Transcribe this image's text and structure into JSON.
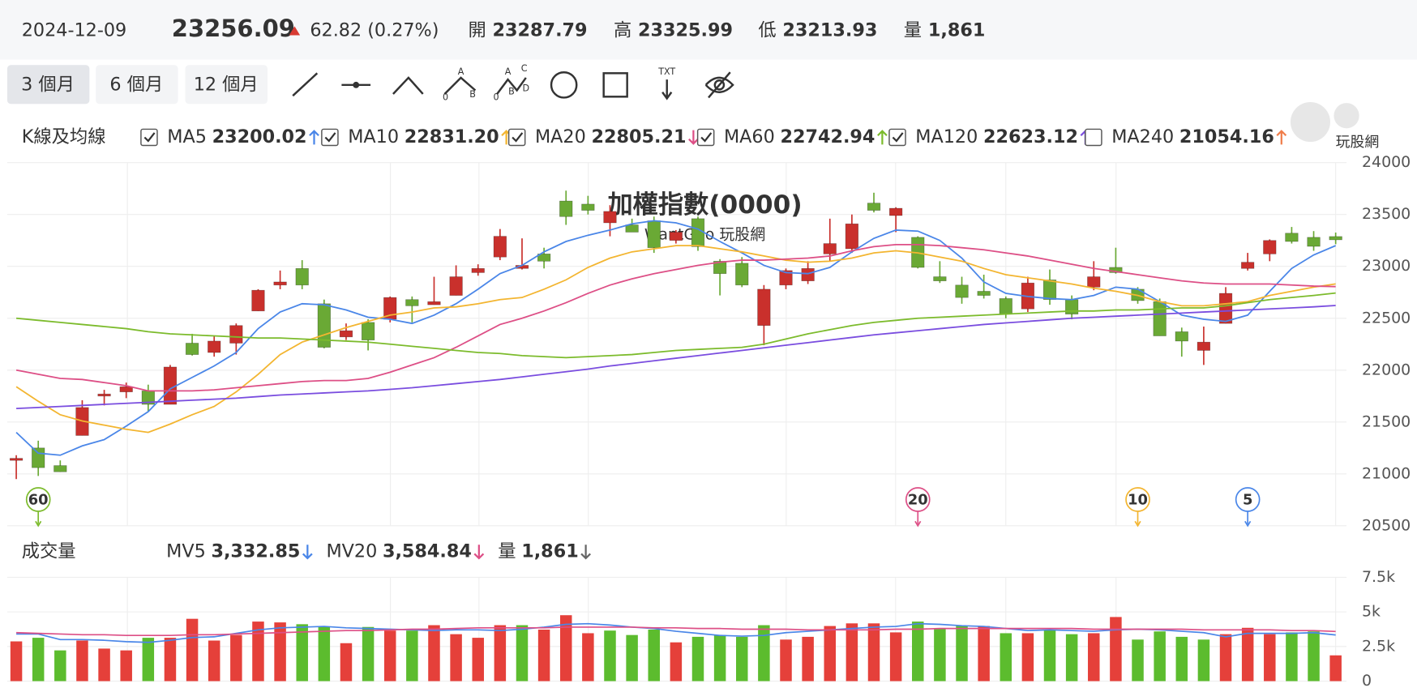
{
  "header": {
    "date": "2024-12-09",
    "price": "23256.09",
    "change": "62.82 (0.27%)",
    "trend": "up",
    "fields": [
      {
        "label": "開",
        "value": "23287.79"
      },
      {
        "label": "高",
        "value": "23325.99"
      },
      {
        "label": "低",
        "value": "23213.93"
      },
      {
        "label": "量",
        "value": "1,861"
      }
    ]
  },
  "toolbar": {
    "ranges": [
      "3 個月",
      "6 個月",
      "12 個月"
    ],
    "selected": 0,
    "glyphs": {
      "abc": [
        "A",
        "0",
        "B"
      ],
      "abcd": [
        "A",
        "C",
        "0",
        "B",
        "D"
      ],
      "txt": "TXT"
    }
  },
  "watermark": "玩股網",
  "chart_data": [
    {
      "type": "candlestick",
      "legend_title": "K線及均線",
      "title": "加權指數(0000)",
      "subtitle": "WantGoo 玩股網",
      "up_color": "#c9302c",
      "down_color": "#6aa935",
      "open": [
        21130,
        21250,
        21080,
        21370,
        21750,
        21790,
        21800,
        21670,
        22260,
        22170,
        22260,
        22570,
        22820,
        22980,
        22640,
        22320,
        22460,
        22490,
        22680,
        22630,
        22720,
        22940,
        23090,
        22980,
        23120,
        23630,
        23600,
        23420,
        23400,
        23440,
        23250,
        23460,
        23050,
        23030,
        22430,
        22820,
        22860,
        23120,
        23170,
        23610,
        23490,
        23280,
        22900,
        22820,
        22760,
        22690,
        22590,
        22870,
        22680,
        22800,
        22990,
        22780,
        22660,
        22370,
        22190,
        22450,
        22980,
        23120,
        23320,
        23280,
        23287.79
      ],
      "high": [
        21180,
        21320,
        21130,
        21710,
        21810,
        21880,
        21860,
        22050,
        22350,
        22330,
        22450,
        22780,
        22960,
        23060,
        22680,
        22450,
        22490,
        22710,
        22710,
        22900,
        23010,
        23020,
        23360,
        23270,
        23180,
        23730,
        23680,
        23590,
        23460,
        23480,
        23350,
        23480,
        23070,
        23090,
        22820,
        22980,
        23050,
        23460,
        23500,
        23710,
        23570,
        23290,
        23050,
        22900,
        22920,
        22710,
        22900,
        22970,
        22720,
        23050,
        23180,
        22800,
        22690,
        22410,
        22420,
        22800,
        23130,
        23260,
        23380,
        23340,
        23325.99
      ],
      "low": [
        20950,
        20980,
        21020,
        21370,
        21660,
        21730,
        21600,
        21670,
        22140,
        22130,
        22150,
        22570,
        22780,
        22780,
        22210,
        22290,
        22190,
        22460,
        22460,
        22630,
        22720,
        22910,
        23060,
        22970,
        22980,
        23400,
        23500,
        23290,
        23330,
        23130,
        23220,
        23150,
        22720,
        22800,
        22240,
        22780,
        22830,
        23050,
        23130,
        23520,
        23330,
        22980,
        22840,
        22640,
        22690,
        22500,
        22560,
        22630,
        22490,
        22770,
        22930,
        22640,
        22330,
        22130,
        22050,
        22450,
        22960,
        23050,
        23220,
        23150,
        23213.93
      ],
      "close": [
        21150,
        21060,
        21020,
        21640,
        21770,
        21840,
        21670,
        22030,
        22150,
        22280,
        22430,
        22770,
        22850,
        22820,
        22220,
        22380,
        22290,
        22700,
        22620,
        22660,
        22900,
        22980,
        23290,
        23010,
        23050,
        23480,
        23540,
        23530,
        23330,
        23180,
        23330,
        23190,
        22930,
        22820,
        22780,
        22960,
        22980,
        23220,
        23410,
        23540,
        23560,
        22990,
        22860,
        22700,
        22720,
        22540,
        22840,
        22680,
        22540,
        22900,
        22940,
        22670,
        22330,
        22280,
        22270,
        22740,
        23040,
        23250,
        23240,
        23193,
        23256.09
      ],
      "ylim": [
        20500,
        24000
      ],
      "yticks": [
        20500,
        21000,
        21500,
        22000,
        22500,
        23000,
        23500,
        24000
      ],
      "grid": true,
      "series": [
        {
          "name": "MA5",
          "color": "#4a86e8",
          "legend_value": "23200.02",
          "trend": "up",
          "checked": true,
          "values": [
            21400,
            21200,
            21180,
            21270,
            21330,
            21460,
            21600,
            21820,
            21930,
            22040,
            22170,
            22400,
            22560,
            22640,
            22630,
            22580,
            22510,
            22490,
            22450,
            22530,
            22640,
            22780,
            22930,
            23010,
            23140,
            23240,
            23300,
            23350,
            23410,
            23440,
            23420,
            23360,
            23240,
            23130,
            23010,
            22940,
            22930,
            22990,
            23140,
            23270,
            23350,
            23340,
            23250,
            23080,
            22850,
            22740,
            22710,
            22690,
            22680,
            22720,
            22800,
            22780,
            22660,
            22530,
            22490,
            22470,
            22530,
            22760,
            22980,
            23110,
            23200.02
          ]
        },
        {
          "name": "MA10",
          "color": "#f3b530",
          "legend_value": "22831.20",
          "trend": "up",
          "checked": true,
          "values": [
            21840,
            21700,
            21570,
            21510,
            21470,
            21430,
            21400,
            21480,
            21570,
            21650,
            21790,
            21960,
            22150,
            22270,
            22340,
            22410,
            22470,
            22530,
            22560,
            22600,
            22610,
            22640,
            22680,
            22700,
            22780,
            22870,
            22990,
            23080,
            23140,
            23170,
            23200,
            23200,
            23170,
            23140,
            23100,
            23060,
            23040,
            23050,
            23080,
            23130,
            23150,
            23130,
            23090,
            23050,
            22980,
            22920,
            22890,
            22860,
            22830,
            22790,
            22760,
            22720,
            22660,
            22620,
            22620,
            22640,
            22660,
            22720,
            22760,
            22800,
            22831.2
          ]
        },
        {
          "name": "MA20",
          "color": "#dd4f86",
          "legend_value": "22805.21",
          "trend": "down",
          "checked": true,
          "values": [
            22000,
            21960,
            21920,
            21910,
            21880,
            21850,
            21800,
            21800,
            21800,
            21810,
            21830,
            21850,
            21870,
            21890,
            21900,
            21900,
            21920,
            21980,
            22050,
            22120,
            22220,
            22330,
            22440,
            22500,
            22570,
            22650,
            22740,
            22820,
            22880,
            22930,
            22970,
            23010,
            23040,
            23060,
            23060,
            23070,
            23080,
            23100,
            23150,
            23190,
            23210,
            23210,
            23200,
            23180,
            23160,
            23130,
            23100,
            23060,
            23020,
            22980,
            22950,
            22920,
            22890,
            22860,
            22840,
            22830,
            22830,
            22830,
            22820,
            22810,
            22805.21
          ]
        },
        {
          "name": "MA60",
          "color": "#7cbb2c",
          "legend_value": "22742.94",
          "trend": "up",
          "checked": true,
          "values": [
            22500,
            22480,
            22460,
            22440,
            22420,
            22400,
            22370,
            22350,
            22340,
            22330,
            22320,
            22310,
            22310,
            22300,
            22290,
            22280,
            22270,
            22250,
            22230,
            22210,
            22190,
            22170,
            22160,
            22140,
            22130,
            22120,
            22130,
            22140,
            22150,
            22170,
            22190,
            22200,
            22210,
            22220,
            22250,
            22300,
            22350,
            22390,
            22430,
            22460,
            22480,
            22500,
            22510,
            22520,
            22530,
            22540,
            22550,
            22560,
            22570,
            22570,
            22580,
            22580,
            22590,
            22600,
            22600,
            22620,
            22650,
            22680,
            22700,
            22720,
            22742.94
          ]
        },
        {
          "name": "MA120",
          "color": "#7a4ddf",
          "legend_value": "22623.12",
          "trend": "up",
          "checked": true,
          "values": [
            21630,
            21640,
            21650,
            21660,
            21670,
            21680,
            21690,
            21700,
            21710,
            21720,
            21730,
            21745,
            21760,
            21770,
            21780,
            21790,
            21800,
            21815,
            21830,
            21850,
            21870,
            21890,
            21910,
            21935,
            21960,
            21985,
            22010,
            22040,
            22065,
            22090,
            22115,
            22140,
            22165,
            22190,
            22215,
            22240,
            22265,
            22290,
            22315,
            22340,
            22360,
            22380,
            22400,
            22420,
            22440,
            22455,
            22470,
            22485,
            22500,
            22510,
            22520,
            22530,
            22540,
            22550,
            22560,
            22570,
            22580,
            22590,
            22600,
            22610,
            22623.12
          ]
        },
        {
          "name": "MA240",
          "color": "#f07d4a",
          "legend_value": "21054.16",
          "trend": "up",
          "checked": false
        }
      ],
      "markers": [
        {
          "label": "60",
          "at": 1,
          "color": "#7cbb2c"
        },
        {
          "label": "20",
          "at": 41,
          "color": "#dd4f86"
        },
        {
          "label": "10",
          "at": 51,
          "color": "#f3b530"
        },
        {
          "label": "5",
          "at": 56,
          "color": "#4a86e8"
        }
      ]
    },
    {
      "type": "volume",
      "title": "成交量",
      "up_color": "#e5403a",
      "down_color": "#5cbc2e",
      "values": [
        2870,
        3130,
        2220,
        2930,
        2350,
        2220,
        3130,
        3130,
        4500,
        2930,
        3330,
        4300,
        4240,
        4110,
        3910,
        2740,
        3910,
        3650,
        3650,
        4040,
        3390,
        3130,
        4040,
        4040,
        3720,
        4760,
        3460,
        3650,
        3330,
        3720,
        2800,
        3200,
        3330,
        3200,
        4040,
        3000,
        3200,
        3980,
        4170,
        4170,
        3520,
        4300,
        3780,
        3980,
        3980,
        3460,
        3460,
        3720,
        3390,
        3460,
        4630,
        3000,
        3590,
        3200,
        3000,
        3390,
        3850,
        3390,
        3520,
        3590,
        1861
      ],
      "ylim": [
        0,
        7500
      ],
      "yticks": [
        0,
        {
          "value": 2500,
          "label": "2.5k"
        },
        {
          "value": 5000,
          "label": "5k"
        },
        {
          "value": 7500,
          "label": "7.5k"
        }
      ],
      "series": [
        {
          "name": "MV5",
          "color": "#4a86e8",
          "legend_value": "3,332.85",
          "trend": "down",
          "values": [
            3400,
            3400,
            3000,
            3000,
            2950,
            2850,
            2800,
            2950,
            3150,
            3200,
            3450,
            3700,
            3850,
            3900,
            3950,
            3850,
            3800,
            3750,
            3700,
            3650,
            3700,
            3700,
            3650,
            3750,
            3900,
            4100,
            4150,
            4050,
            3900,
            3800,
            3600,
            3450,
            3300,
            3250,
            3300,
            3500,
            3600,
            3700,
            3800,
            3900,
            3950,
            4150,
            4100,
            4000,
            3950,
            3800,
            3650,
            3700,
            3650,
            3600,
            3700,
            3750,
            3700,
            3600,
            3500,
            3200,
            3450,
            3450,
            3450,
            3500,
            3332.85
          ]
        },
        {
          "name": "MV20",
          "color": "#dd4f86",
          "legend_value": "3,584.84",
          "trend": "down",
          "values": [
            3500,
            3450,
            3400,
            3350,
            3350,
            3300,
            3300,
            3300,
            3350,
            3350,
            3400,
            3450,
            3500,
            3550,
            3600,
            3650,
            3650,
            3700,
            3750,
            3750,
            3800,
            3850,
            3850,
            3850,
            3850,
            3900,
            3900,
            3900,
            3900,
            3850,
            3850,
            3800,
            3800,
            3750,
            3750,
            3750,
            3700,
            3700,
            3700,
            3700,
            3750,
            3750,
            3800,
            3800,
            3800,
            3800,
            3800,
            3800,
            3800,
            3750,
            3750,
            3750,
            3750,
            3750,
            3700,
            3700,
            3700,
            3700,
            3650,
            3650,
            3584.84
          ]
        }
      ],
      "total": {
        "name": "量",
        "legend_value": "1,861",
        "trend": "down",
        "color": "#666"
      }
    }
  ]
}
